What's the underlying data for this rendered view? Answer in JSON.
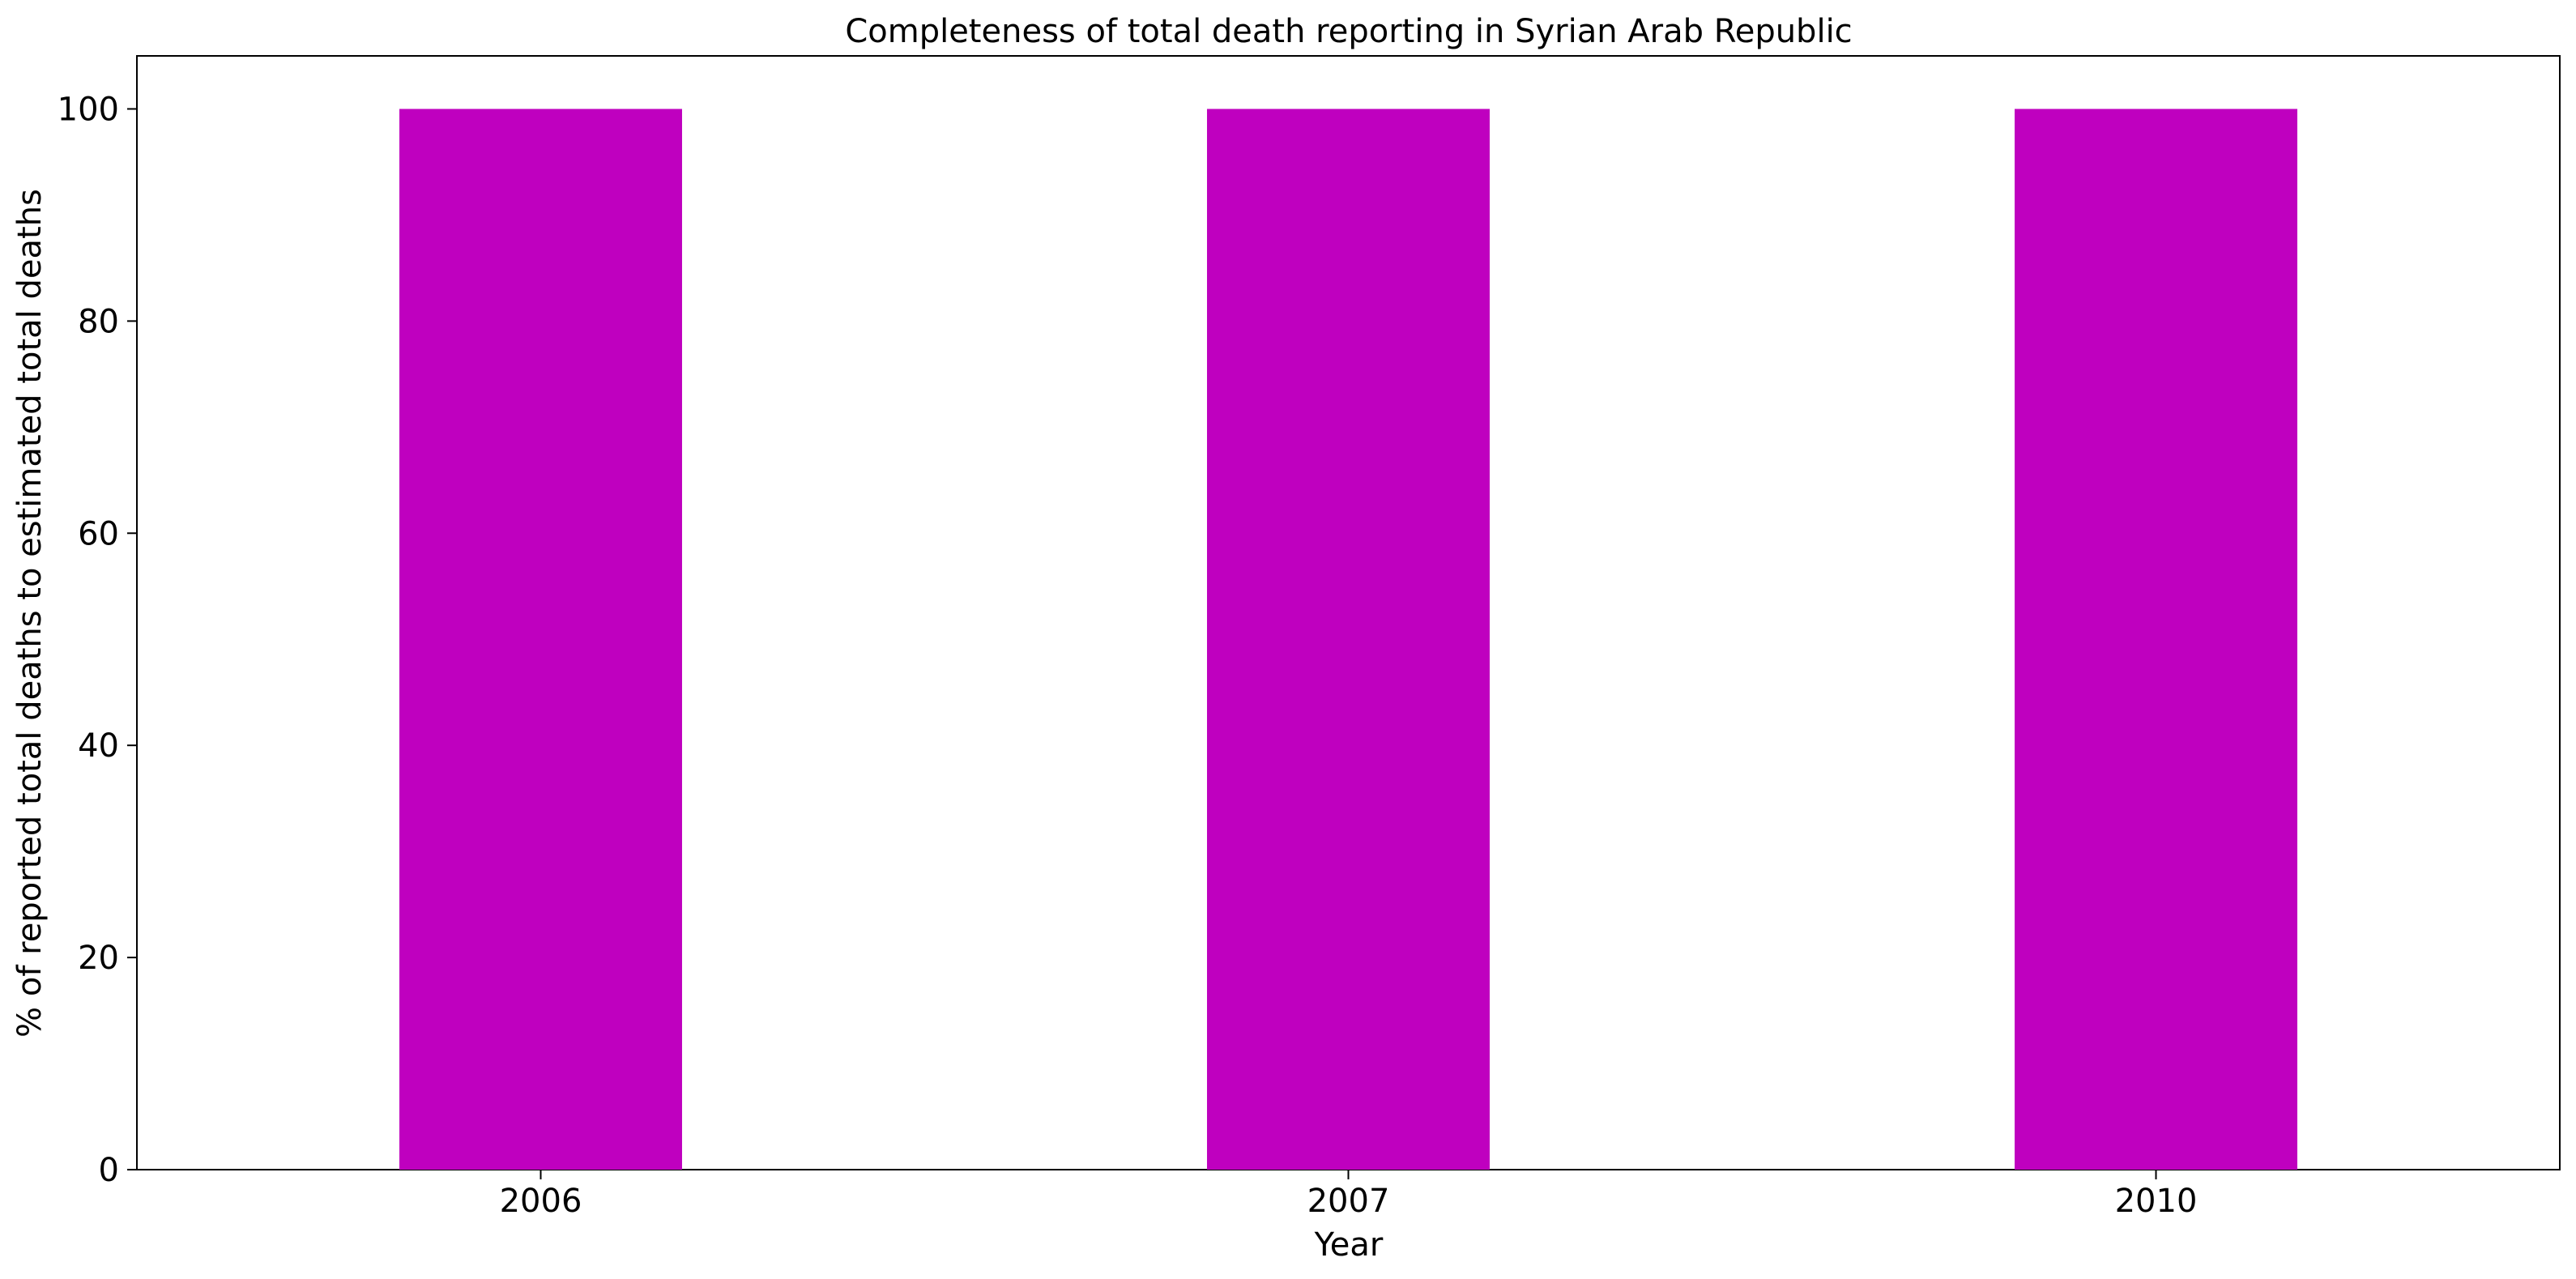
{
  "chart_data": {
    "type": "bar",
    "title": "Completeness of total death reporting in Syrian Arab Republic",
    "xlabel": "Year",
    "ylabel": "% of reported total deaths to estimated total deaths",
    "categories": [
      "2006",
      "2007",
      "2010"
    ],
    "values": [
      100,
      100,
      100
    ],
    "ylim": [
      0,
      105
    ],
    "yticks": [
      0,
      20,
      40,
      60,
      80,
      100
    ],
    "bar_color": "#bf00bf",
    "grid": false,
    "legend": "none"
  }
}
